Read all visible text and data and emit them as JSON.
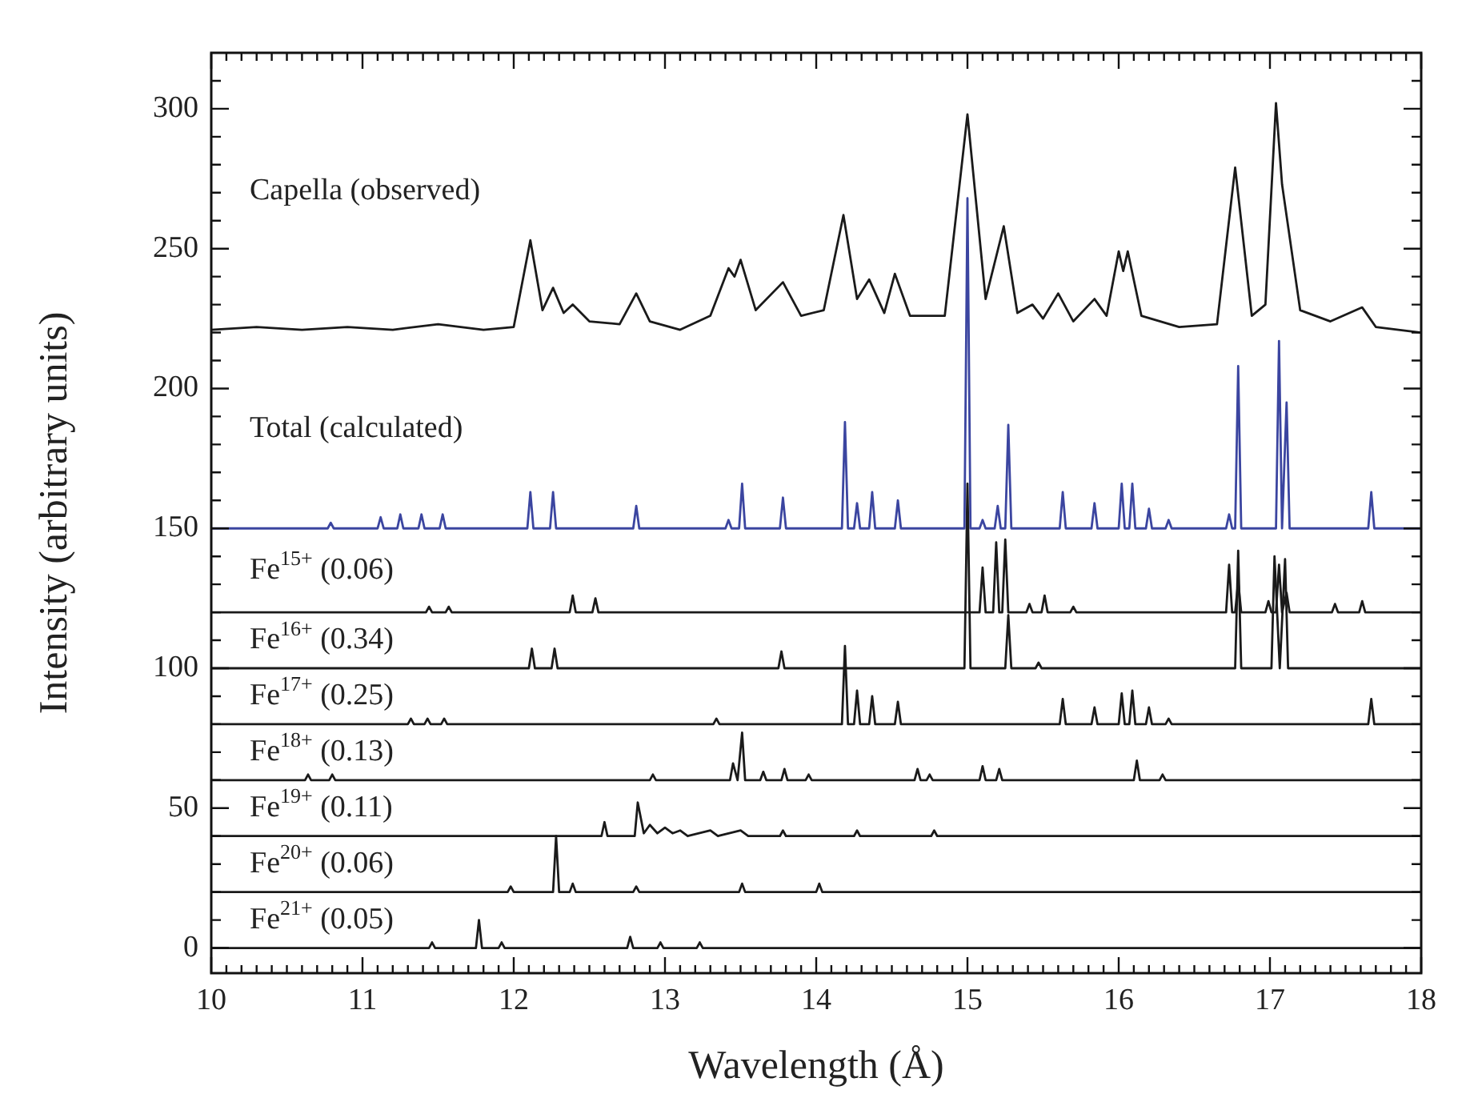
{
  "chart_data": {
    "type": "line",
    "xlabel": "Wavelength (Å)",
    "ylabel": "Intensity (arbitrary units)",
    "marker": "none",
    "line_style": "solid",
    "xlim": [
      10,
      18
    ],
    "ylim": [
      -9,
      320
    ],
    "xticks": [
      10,
      {
        "value": 10.1,
        "label": null
      },
      {
        "value": 10.2,
        "label": null
      },
      {
        "value": 10.3,
        "label": null
      },
      {
        "value": 10.4,
        "label": null
      },
      {
        "value": 10.5,
        "label": null
      },
      {
        "value": 10.6,
        "label": null
      },
      {
        "value": 10.7,
        "label": null
      },
      {
        "value": 10.8,
        "label": null
      },
      {
        "value": 10.9,
        "label": null
      },
      11,
      {
        "value": 11.1,
        "label": null
      },
      {
        "value": 11.2,
        "label": null
      },
      {
        "value": 11.3,
        "label": null
      },
      {
        "value": 11.4,
        "label": null
      },
      {
        "value": 11.5,
        "label": null
      },
      {
        "value": 11.6,
        "label": null
      },
      {
        "value": 11.7,
        "label": null
      },
      {
        "value": 11.8,
        "label": null
      },
      {
        "value": 11.9,
        "label": null
      },
      12,
      {
        "value": 12.1,
        "label": null
      },
      {
        "value": 12.2,
        "label": null
      },
      {
        "value": 12.3,
        "label": null
      },
      {
        "value": 12.4,
        "label": null
      },
      {
        "value": 12.5,
        "label": null
      },
      {
        "value": 12.6,
        "label": null
      },
      {
        "value": 12.7,
        "label": null
      },
      {
        "value": 12.8,
        "label": null
      },
      {
        "value": 12.9,
        "label": null
      },
      13,
      {
        "value": 13.1,
        "label": null
      },
      {
        "value": 13.2,
        "label": null
      },
      {
        "value": 13.3,
        "label": null
      },
      {
        "value": 13.4,
        "label": null
      },
      {
        "value": 13.5,
        "label": null
      },
      {
        "value": 13.6,
        "label": null
      },
      {
        "value": 13.7,
        "label": null
      },
      {
        "value": 13.8,
        "label": null
      },
      {
        "value": 13.9,
        "label": null
      },
      14,
      {
        "value": 14.1,
        "label": null
      },
      {
        "value": 14.2,
        "label": null
      },
      {
        "value": 14.3,
        "label": null
      },
      {
        "value": 14.4,
        "label": null
      },
      {
        "value": 14.5,
        "label": null
      },
      {
        "value": 14.6,
        "label": null
      },
      {
        "value": 14.7,
        "label": null
      },
      {
        "value": 14.8,
        "label": null
      },
      {
        "value": 14.9,
        "label": null
      },
      15,
      {
        "value": 15.1,
        "label": null
      },
      {
        "value": 15.2,
        "label": null
      },
      {
        "value": 15.3,
        "label": null
      },
      {
        "value": 15.4,
        "label": null
      },
      {
        "value": 15.5,
        "label": null
      },
      {
        "value": 15.6,
        "label": null
      },
      {
        "value": 15.7,
        "label": null
      },
      {
        "value": 15.8,
        "label": null
      },
      {
        "value": 15.9,
        "label": null
      },
      16,
      {
        "value": 16.1,
        "label": null
      },
      {
        "value": 16.2,
        "label": null
      },
      {
        "value": 16.3,
        "label": null
      },
      {
        "value": 16.4,
        "label": null
      },
      {
        "value": 16.5,
        "label": null
      },
      {
        "value": 16.6,
        "label": null
      },
      {
        "value": 16.7,
        "label": null
      },
      {
        "value": 16.8,
        "label": null
      },
      {
        "value": 16.9,
        "label": null
      },
      17,
      {
        "value": 17.1,
        "label": null
      },
      {
        "value": 17.2,
        "label": null
      },
      {
        "value": 17.3,
        "label": null
      },
      {
        "value": 17.4,
        "label": null
      },
      {
        "value": 17.5,
        "label": null
      },
      {
        "value": 17.6,
        "label": null
      },
      {
        "value": 17.7,
        "label": null
      },
      {
        "value": 17.8,
        "label": null
      },
      {
        "value": 17.9,
        "label": null
      },
      18
    ],
    "yticks": [
      0,
      {
        "value": 10,
        "label": null
      },
      {
        "value": 20,
        "label": null
      },
      {
        "value": 30,
        "label": null
      },
      {
        "value": 40,
        "label": null
      },
      50,
      {
        "value": 60,
        "label": null
      },
      {
        "value": 70,
        "label": null
      },
      {
        "value": 80,
        "label": null
      },
      {
        "value": 90,
        "label": null
      },
      100,
      {
        "value": 110,
        "label": null
      },
      {
        "value": 120,
        "label": null
      },
      {
        "value": 130,
        "label": null
      },
      {
        "value": 140,
        "label": null
      },
      150,
      {
        "value": 160,
        "label": null
      },
      {
        "value": 170,
        "label": null
      },
      {
        "value": 180,
        "label": null
      },
      {
        "value": 190,
        "label": null
      },
      200,
      {
        "value": 210,
        "label": null
      },
      {
        "value": 220,
        "label": null
      },
      {
        "value": 230,
        "label": null
      },
      {
        "value": 240,
        "label": null
      },
      250,
      {
        "value": 260,
        "label": null
      },
      {
        "value": 270,
        "label": null
      },
      {
        "value": 280,
        "label": null
      },
      {
        "value": 290,
        "label": null
      },
      300,
      {
        "value": 310,
        "label": null
      }
    ],
    "series": [
      {
        "name": "Capella (observed)",
        "color": "#1a1a1a",
        "x": [
          10,
          10.3,
          10.6,
          10.9,
          11.2,
          11.5,
          11.8,
          12.0,
          12.11,
          12.19,
          12.26,
          12.33,
          12.39,
          12.5,
          12.7,
          12.81,
          12.9,
          13.1,
          13.3,
          13.42,
          13.46,
          13.5,
          13.6,
          13.78,
          13.9,
          14.05,
          14.18,
          14.27,
          14.35,
          14.45,
          14.52,
          14.62,
          14.85,
          15.0,
          15.12,
          15.24,
          15.33,
          15.43,
          15.5,
          15.6,
          15.7,
          15.84,
          15.92,
          16.0,
          16.03,
          16.06,
          16.15,
          16.4,
          16.65,
          16.77,
          16.88,
          16.97,
          17.04,
          17.08,
          17.2,
          17.4,
          17.61,
          17.7,
          18
        ],
        "values": [
          221,
          222,
          221,
          222,
          221,
          223,
          221,
          222,
          253,
          228,
          236,
          227,
          230,
          224,
          223,
          234,
          224,
          221,
          226,
          243,
          240,
          246,
          228,
          238,
          226,
          228,
          262,
          232,
          239,
          227,
          241,
          226,
          226,
          298,
          232,
          258,
          227,
          230,
          225,
          234,
          224,
          232,
          226,
          249,
          242,
          249,
          226,
          222,
          223,
          279,
          226,
          230,
          302,
          273,
          228,
          224,
          229,
          222,
          220
        ]
      },
      {
        "name": "Total (calculated)",
        "color": "#3b45a0",
        "x": [
          10,
          10.77,
          10.79,
          10.81,
          11.1,
          11.12,
          11.14,
          11.23,
          11.25,
          11.27,
          11.37,
          11.39,
          11.41,
          11.51,
          11.53,
          11.55,
          12.09,
          12.11,
          12.13,
          12.24,
          12.26,
          12.28,
          12.79,
          12.81,
          12.83,
          13.4,
          13.42,
          13.44,
          13.49,
          13.51,
          13.53,
          13.76,
          13.78,
          13.8,
          14.17,
          14.19,
          14.21,
          14.25,
          14.27,
          14.29,
          14.35,
          14.37,
          14.39,
          14.52,
          14.54,
          14.56,
          14.98,
          15,
          15.02,
          15.08,
          15.1,
          15.12,
          15.18,
          15.2,
          15.22,
          15.25,
          15.27,
          15.29,
          15.61,
          15.63,
          15.65,
          15.82,
          15.84,
          15.86,
          16,
          16.02,
          16.04,
          16.07,
          16.09,
          16.11,
          16.18,
          16.2,
          16.22,
          16.31,
          16.33,
          16.35,
          16.71,
          16.73,
          16.75,
          16.77,
          16.79,
          16.81,
          17.04,
          17.06,
          17.08,
          17.11,
          17.13,
          17.65,
          17.67,
          17.69,
          18
        ],
        "values": [
          150,
          150,
          152,
          150,
          150,
          154,
          150,
          150,
          155,
          150,
          150,
          155,
          150,
          150,
          155,
          150,
          150,
          163,
          150,
          150,
          163,
          150,
          150,
          158,
          150,
          150,
          153,
          150,
          150,
          166,
          150,
          150,
          161,
          150,
          150,
          188,
          150,
          150,
          159,
          150,
          150,
          163,
          150,
          150,
          160,
          150,
          150,
          268,
          150,
          150,
          153,
          150,
          150,
          158,
          150,
          150,
          187,
          150,
          150,
          163,
          150,
          150,
          159,
          150,
          150,
          166,
          150,
          150,
          166,
          150,
          150,
          157,
          150,
          150,
          153,
          150,
          150,
          155,
          150,
          150,
          208,
          150,
          150,
          217,
          150,
          195,
          150,
          150,
          163,
          150,
          150
        ]
      },
      {
        "name": "Fe$^{15+}$ (0.06)",
        "color": "#1a1a1a",
        "x": [
          10,
          11.42,
          11.44,
          11.46,
          11.55,
          11.57,
          11.59,
          12.37,
          12.39,
          12.41,
          12.52,
          12.54,
          12.56,
          15.08,
          15.1,
          15.12,
          15.17,
          15.19,
          15.21,
          15.23,
          15.25,
          15.27,
          15.39,
          15.41,
          15.43,
          15.49,
          15.51,
          15.53,
          15.68,
          15.7,
          15.72,
          16.71,
          16.73,
          16.75,
          16.77,
          16.79,
          16.81,
          16.97,
          16.99,
          17.01,
          17.04,
          17.06,
          17.08,
          17.11,
          17.13,
          17.41,
          17.43,
          17.45,
          17.59,
          17.61,
          17.63,
          18
        ],
        "values": [
          120,
          120,
          122,
          120,
          120,
          122,
          120,
          120,
          126,
          120,
          120,
          125,
          120,
          120,
          136,
          120,
          120,
          145,
          120,
          120,
          146,
          120,
          120,
          123,
          120,
          120,
          126,
          120,
          120,
          122,
          120,
          120,
          137,
          120,
          120,
          131,
          120,
          120,
          124,
          120,
          120,
          137,
          120,
          127,
          120,
          120,
          123,
          120,
          120,
          124,
          120,
          120
        ]
      },
      {
        "name": "Fe$^{16+}$ (0.34)",
        "color": "#1a1a1a",
        "x": [
          10,
          12.1,
          12.12,
          12.14,
          12.25,
          12.27,
          12.29,
          13.75,
          13.77,
          13.79,
          14.98,
          15,
          15.02,
          15.25,
          15.27,
          15.29,
          15.45,
          15.47,
          15.49,
          16.77,
          16.79,
          16.81,
          17.01,
          17.03,
          17.065,
          17.1,
          17.12,
          18
        ],
        "values": [
          100,
          100,
          107,
          100,
          100,
          107,
          100,
          100,
          106,
          100,
          100,
          166,
          100,
          100,
          119,
          100,
          100,
          102,
          100,
          100,
          142,
          100,
          100,
          140,
          100,
          139,
          100,
          100
        ]
      },
      {
        "name": "Fe$^{17+}$ (0.25)",
        "color": "#1a1a1a",
        "x": [
          10,
          11.3,
          11.32,
          11.34,
          11.41,
          11.43,
          11.45,
          11.52,
          11.54,
          11.56,
          13.32,
          13.34,
          13.36,
          14.17,
          14.19,
          14.21,
          14.25,
          14.27,
          14.29,
          14.35,
          14.37,
          14.39,
          14.52,
          14.54,
          14.56,
          15.61,
          15.63,
          15.65,
          15.82,
          15.84,
          15.86,
          16,
          16.02,
          16.04,
          16.07,
          16.09,
          16.11,
          16.18,
          16.2,
          16.22,
          16.31,
          16.33,
          16.35,
          17.65,
          17.67,
          17.69,
          18
        ],
        "values": [
          80,
          80,
          82,
          80,
          80,
          82,
          80,
          80,
          82,
          80,
          80,
          82,
          80,
          80,
          108,
          80,
          80,
          92,
          80,
          80,
          90,
          80,
          80,
          88,
          80,
          80,
          89,
          80,
          80,
          86,
          80,
          80,
          91,
          80,
          80,
          92,
          80,
          80,
          86,
          80,
          80,
          82,
          80,
          80,
          89,
          80,
          80
        ]
      },
      {
        "name": "Fe$^{18+}$ (0.13)",
        "color": "#1a1a1a",
        "x": [
          10,
          10.62,
          10.64,
          10.66,
          10.78,
          10.8,
          10.82,
          12.9,
          12.92,
          12.94,
          13.43,
          13.45,
          13.48,
          13.51,
          13.53,
          13.63,
          13.65,
          13.67,
          13.77,
          13.79,
          13.81,
          13.93,
          13.95,
          13.97,
          14.65,
          14.67,
          14.69,
          14.73,
          14.75,
          14.77,
          15.08,
          15.1,
          15.12,
          15.19,
          15.21,
          15.23,
          16.1,
          16.12,
          16.14,
          16.27,
          16.29,
          16.31,
          18
        ],
        "values": [
          60,
          60,
          62,
          60,
          60,
          62,
          60,
          60,
          62,
          60,
          60,
          66,
          60,
          77,
          60,
          60,
          63,
          60,
          60,
          64,
          60,
          60,
          62,
          60,
          60,
          64,
          60,
          60,
          62,
          60,
          60,
          65,
          60,
          60,
          64,
          60,
          60,
          67,
          60,
          60,
          62,
          60,
          60
        ]
      },
      {
        "name": "Fe$^{19+}$ (0.11)",
        "color": "#1a1a1a",
        "x": [
          10,
          12.58,
          12.6,
          12.62,
          12.8,
          12.82,
          12.86,
          12.9,
          12.95,
          13,
          13.05,
          13.1,
          13.15,
          13.3,
          13.35,
          13.5,
          13.55,
          13.76,
          13.78,
          13.8,
          14.25,
          14.27,
          14.29,
          14.76,
          14.78,
          14.8,
          18
        ],
        "values": [
          40,
          40,
          45,
          40,
          40,
          52,
          41,
          44,
          41,
          43,
          41,
          42,
          40,
          42,
          40,
          42,
          40,
          40,
          42,
          40,
          40,
          42,
          40,
          40,
          42,
          40,
          40
        ]
      },
      {
        "name": "Fe$^{20+}$ (0.06)",
        "color": "#1a1a1a",
        "x": [
          10,
          11.96,
          11.98,
          12,
          12.26,
          12.28,
          12.3,
          12.37,
          12.39,
          12.41,
          12.79,
          12.81,
          12.83,
          13.49,
          13.51,
          13.53,
          14,
          14.02,
          14.04,
          18
        ],
        "values": [
          20,
          20,
          22,
          20,
          20,
          40,
          20,
          20,
          23,
          20,
          20,
          22,
          20,
          20,
          23,
          20,
          20,
          23,
          20,
          20
        ]
      },
      {
        "name": "Fe$^{21+}$ (0.05)",
        "color": "#1a1a1a",
        "x": [
          10,
          11.44,
          11.46,
          11.48,
          11.75,
          11.77,
          11.79,
          11.9,
          11.92,
          11.94,
          12.75,
          12.77,
          12.79,
          12.95,
          12.97,
          12.99,
          13.21,
          13.23,
          13.25,
          18
        ],
        "values": [
          0,
          0,
          2,
          0,
          0,
          10,
          0,
          0,
          2,
          0,
          0,
          4,
          0,
          0,
          2,
          0,
          0,
          2,
          0,
          0
        ]
      }
    ]
  }
}
